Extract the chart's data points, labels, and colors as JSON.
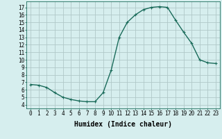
{
  "x": [
    0,
    1,
    2,
    3,
    4,
    5,
    6,
    7,
    8,
    9,
    10,
    11,
    12,
    13,
    14,
    15,
    16,
    17,
    18,
    19,
    20,
    21,
    22,
    23
  ],
  "y": [
    6.7,
    6.6,
    6.3,
    5.6,
    5.0,
    4.7,
    4.5,
    4.4,
    4.4,
    5.6,
    8.6,
    13.0,
    15.0,
    16.0,
    16.7,
    17.0,
    17.1,
    17.0,
    15.3,
    13.7,
    12.2,
    10.0,
    9.6,
    9.5
  ],
  "line_color": "#1a6b5a",
  "marker": "+",
  "bg_color": "#d6eeee",
  "grid_color": "#b0c8c8",
  "xlabel": "Humidex (Indice chaleur)",
  "ylabel": "",
  "title": "",
  "ylim": [
    3.5,
    17.8
  ],
  "xlim": [
    -0.5,
    23.5
  ],
  "yticks": [
    4,
    5,
    6,
    7,
    8,
    9,
    10,
    11,
    12,
    13,
    14,
    15,
    16,
    17
  ],
  "xticks": [
    0,
    1,
    2,
    3,
    4,
    5,
    6,
    7,
    8,
    9,
    10,
    11,
    12,
    13,
    14,
    15,
    16,
    17,
    18,
    19,
    20,
    21,
    22,
    23
  ],
  "tick_label_fontsize": 5.5,
  "xlabel_fontsize": 7,
  "linewidth": 1.0,
  "markersize": 3,
  "markeredgewidth": 0.8
}
